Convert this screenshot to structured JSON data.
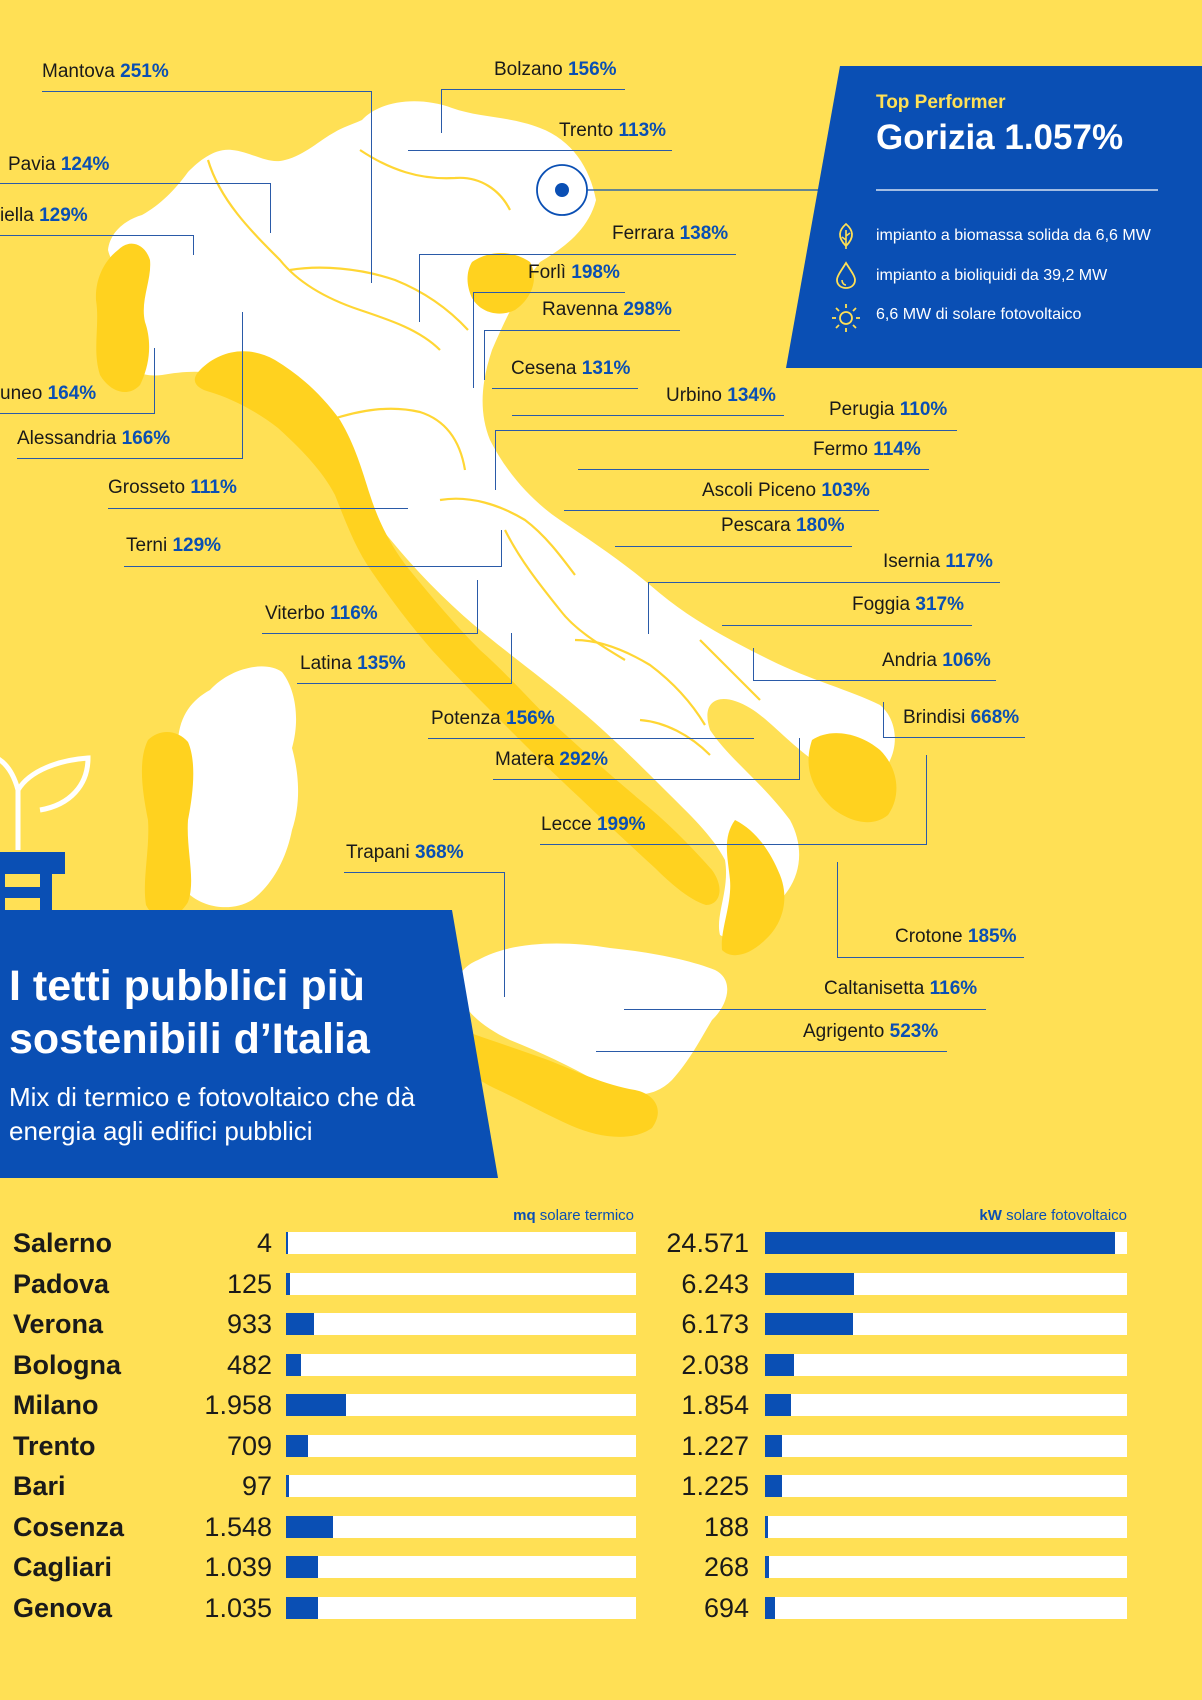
{
  "top_performer": {
    "kicker": "Top Performer",
    "title": "Gorizia 1.057%",
    "items": [
      {
        "icon": "leaf-icon",
        "text": "impianto a biomassa solida da 6,6 MW"
      },
      {
        "icon": "drop-icon",
        "text": "impianto a bioliquidi da 39,2 MW"
      },
      {
        "icon": "sun-icon",
        "text": "6,6 MW di solare fotovoltaico"
      }
    ]
  },
  "title": {
    "main": "I tetti pubblici più sostenibili d’Italia",
    "subtitle": "Mix di termico e fotovoltaico che dà energia agli edifici pubblici"
  },
  "map_labels": [
    {
      "name": "Mantova",
      "value": "251%"
    },
    {
      "name": "Bolzano",
      "value": "156%"
    },
    {
      "name": "Trento",
      "value": "113%"
    },
    {
      "name": "Pavia",
      "value": "124%"
    },
    {
      "name": "iella",
      "value": "129%"
    },
    {
      "name": "Ferrara",
      "value": "138%"
    },
    {
      "name": "Forlì",
      "value": "198%"
    },
    {
      "name": "Ravenna",
      "value": "298%"
    },
    {
      "name": "Cesena",
      "value": "131%"
    },
    {
      "name": "uneo",
      "value": "164%"
    },
    {
      "name": "Urbino",
      "value": "134%"
    },
    {
      "name": "Alessandria",
      "value": "166%"
    },
    {
      "name": "Perugia",
      "value": "110%"
    },
    {
      "name": "Fermo",
      "value": "114%"
    },
    {
      "name": "Grosseto",
      "value": "111%"
    },
    {
      "name": "Ascoli Piceno",
      "value": "103%"
    },
    {
      "name": "Pescara",
      "value": "180%"
    },
    {
      "name": "Terni",
      "value": "129%"
    },
    {
      "name": "Isernia",
      "value": "117%"
    },
    {
      "name": "Viterbo",
      "value": "116%"
    },
    {
      "name": "Foggia",
      "value": "317%"
    },
    {
      "name": "Latina",
      "value": "135%"
    },
    {
      "name": "Andria",
      "value": "106%"
    },
    {
      "name": "Brindisi",
      "value": "668%"
    },
    {
      "name": "Potenza",
      "value": "156%"
    },
    {
      "name": "Matera",
      "value": "292%"
    },
    {
      "name": "Lecce",
      "value": "199%"
    },
    {
      "name": "Trapani",
      "value": "368%"
    },
    {
      "name": "Crotone",
      "value": "185%"
    },
    {
      "name": "Caltanisetta",
      "value": "116%"
    },
    {
      "name": "Agrigento",
      "value": "523%"
    }
  ],
  "chart_data": {
    "type": "bar",
    "categories": [
      "Salerno",
      "Padova",
      "Verona",
      "Bologna",
      "Milano",
      "Trento",
      "Bari",
      "Cosenza",
      "Cagliari",
      "Genova"
    ],
    "series": [
      {
        "name": "mq solare termico",
        "unit_bold": "mq",
        "unit_rest": " solare termico",
        "values": [
          4,
          125,
          933,
          482,
          1958,
          709,
          97,
          1548,
          1039,
          1035
        ],
        "labels": [
          "4",
          "125",
          "933",
          "482",
          "1.958",
          "709",
          "97",
          "1.548",
          "1.039",
          "1.035"
        ],
        "max": 11500
      },
      {
        "name": "kW solare fotovoltaico",
        "unit_bold": "kW",
        "unit_rest": " solare fotovoltaico",
        "values": [
          24571,
          6243,
          6173,
          2038,
          1854,
          1227,
          1225,
          188,
          268,
          694
        ],
        "labels": [
          "24.571",
          "6.243",
          "6.173",
          "2.038",
          "1.854",
          "1.227",
          "1.225",
          "188",
          "268",
          "694"
        ],
        "max": 25400
      }
    ],
    "colors": {
      "bar": "#0A4FB4",
      "track": "#FFFFFF",
      "background": "#FFE055"
    }
  }
}
